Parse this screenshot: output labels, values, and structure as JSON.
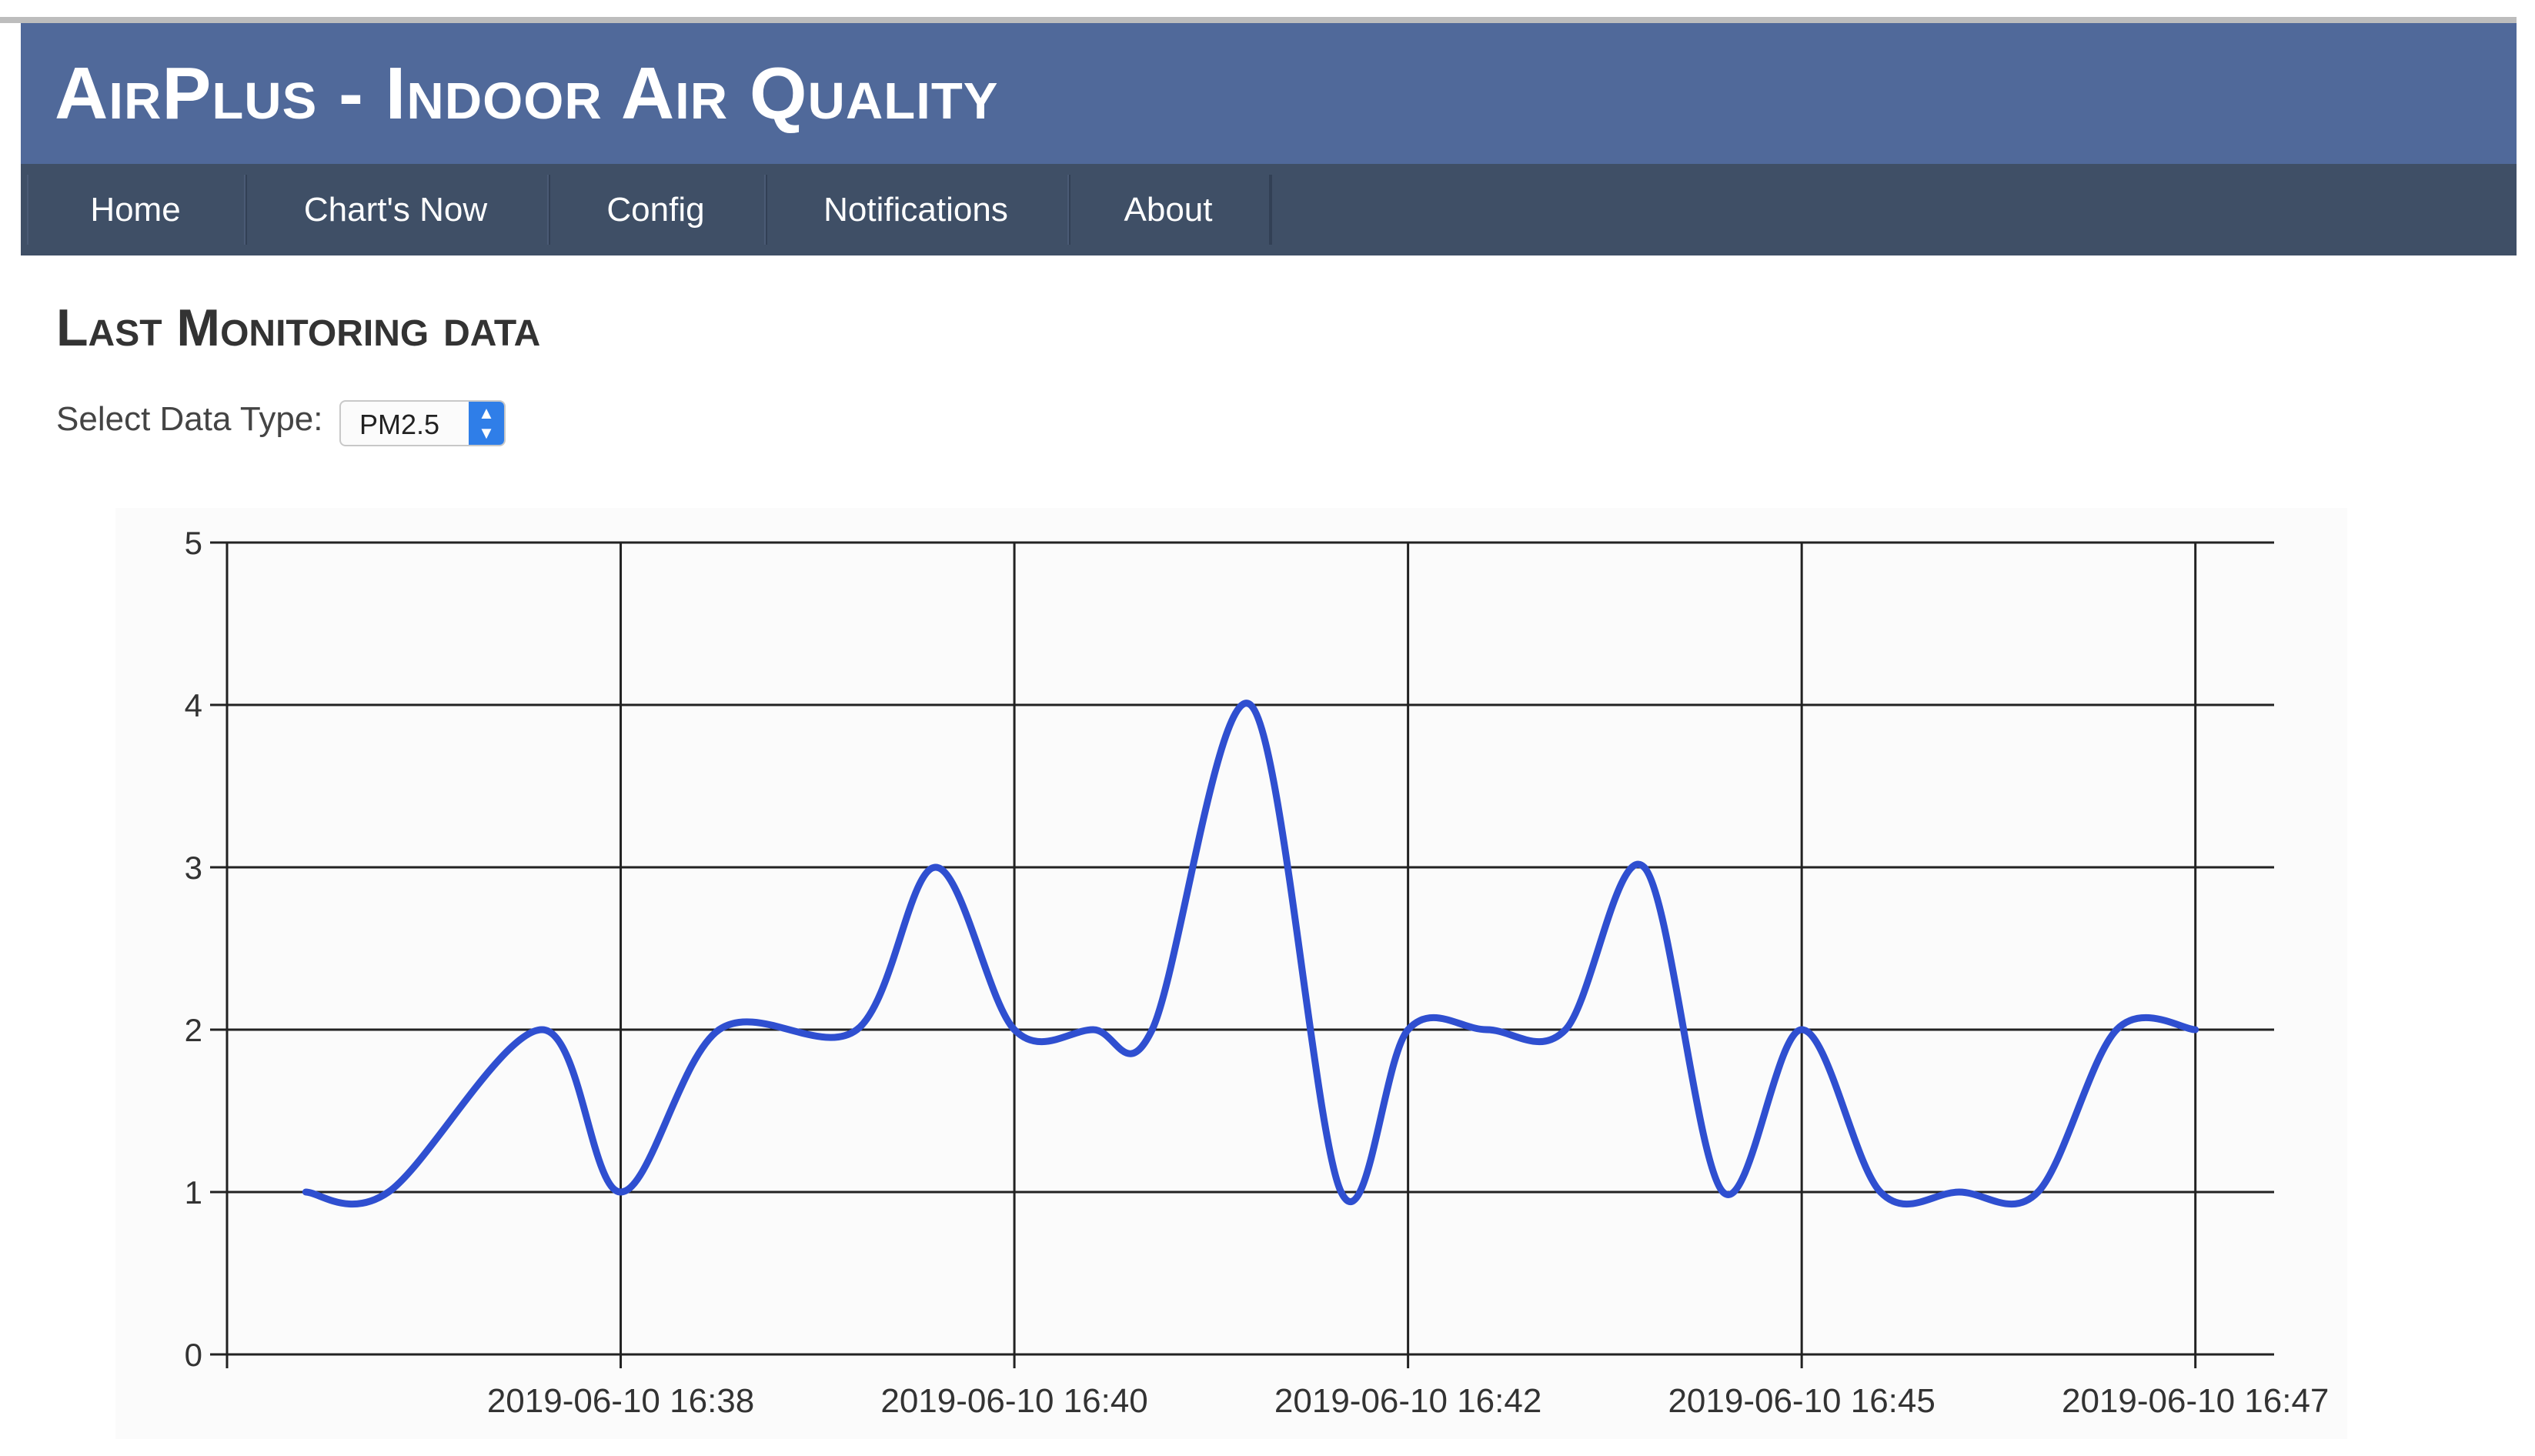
{
  "header": {
    "title": "AirPlus - Indoor Air Quality"
  },
  "nav": {
    "items": [
      "Home",
      "Chart's Now",
      "Config",
      "Notifications",
      "About"
    ]
  },
  "main": {
    "section_title": "Last Monitoring data",
    "select": {
      "label": "Select Data Type:",
      "value": "PM2.5"
    }
  },
  "colors": {
    "header": "#50699a",
    "nav": "#3f4f66",
    "line": "#2f4fd0",
    "select_arrow": "#2f7ee8"
  },
  "chart_data": {
    "type": "line",
    "ylim": [
      0,
      5
    ],
    "yticks": [
      "0",
      "1",
      "2",
      "3",
      "4",
      "5"
    ],
    "x_ticks": [
      {
        "label": "2019-06-10 16:38",
        "x": 1
      },
      {
        "label": "2019-06-10 16:40",
        "x": 2
      },
      {
        "label": "2019-06-10 16:42",
        "x": 3
      },
      {
        "label": "2019-06-10 16:45",
        "x": 4
      },
      {
        "label": "2019-06-10 16:47",
        "x": 5
      }
    ],
    "grid": true,
    "series": [
      {
        "x": [
          0.2,
          0.41,
          0.8,
          1.0,
          1.25,
          1.6,
          1.8,
          2.0,
          2.2,
          2.35,
          2.6,
          2.83,
          3.0,
          3.2,
          3.4,
          3.6,
          3.8,
          4.0,
          4.2,
          4.4,
          4.6,
          4.8,
          5.0
        ],
        "y": [
          1,
          1,
          2,
          1,
          2,
          2,
          3,
          2,
          2,
          2,
          4,
          1,
          2,
          2,
          2,
          3,
          1,
          2,
          1,
          1,
          1,
          2,
          2
        ]
      }
    ]
  }
}
